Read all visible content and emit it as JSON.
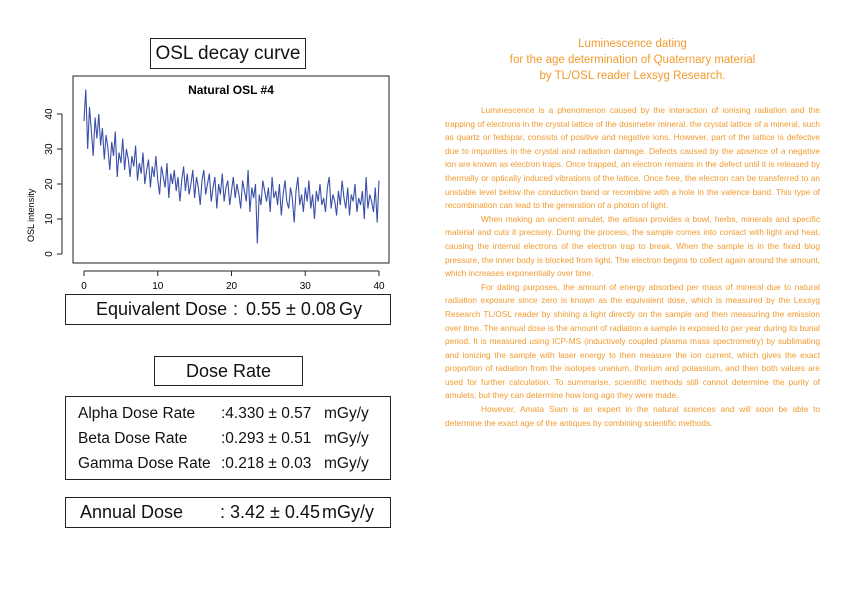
{
  "osl_section": {
    "title": "OSL decay curve"
  },
  "chart_data": {
    "type": "line",
    "title": "Natural OSL #4",
    "xlabel": "",
    "ylabel": "OSL intensity",
    "xlim": [
      0,
      40
    ],
    "ylim": [
      0,
      48
    ],
    "xticks": [
      "0",
      "10",
      "20",
      "30",
      "40"
    ],
    "yticks": [
      "0",
      "10",
      "20",
      "30",
      "40"
    ],
    "color": "#3a4fa8",
    "x": [
      0,
      0.25,
      0.5,
      0.75,
      1,
      1.25,
      1.5,
      1.75,
      2,
      2.25,
      2.5,
      2.75,
      3,
      3.25,
      3.5,
      3.75,
      4,
      4.25,
      4.5,
      4.75,
      5,
      5.25,
      5.5,
      5.75,
      6,
      6.25,
      6.5,
      6.75,
      7,
      7.25,
      7.5,
      7.75,
      8,
      8.25,
      8.5,
      8.75,
      9,
      9.25,
      9.5,
      9.75,
      10,
      10.25,
      10.5,
      10.75,
      11,
      11.25,
      11.5,
      11.75,
      12,
      12.25,
      12.5,
      12.75,
      13,
      13.25,
      13.5,
      13.75,
      14,
      14.25,
      14.5,
      14.75,
      15,
      15.25,
      15.5,
      15.75,
      16,
      16.25,
      16.5,
      16.75,
      17,
      17.25,
      17.5,
      17.75,
      18,
      18.25,
      18.5,
      18.75,
      19,
      19.25,
      19.5,
      19.75,
      20,
      20.25,
      20.5,
      20.75,
      21,
      21.25,
      21.5,
      21.75,
      22,
      22.25,
      22.5,
      22.75,
      23,
      23.25,
      23.5,
      23.75,
      24,
      24.25,
      24.5,
      24.75,
      25,
      25.25,
      25.5,
      25.75,
      26,
      26.25,
      26.5,
      26.75,
      27,
      27.25,
      27.5,
      27.75,
      28,
      28.25,
      28.5,
      28.75,
      29,
      29.25,
      29.5,
      29.75,
      30,
      30.25,
      30.5,
      30.75,
      31,
      31.25,
      31.5,
      31.75,
      32,
      32.25,
      32.5,
      32.75,
      33,
      33.25,
      33.5,
      33.75,
      34,
      34.25,
      34.5,
      34.75,
      35,
      35.25,
      35.5,
      35.75,
      36,
      36.25,
      36.5,
      36.75,
      37,
      37.25,
      37.5,
      37.75,
      38,
      38.25,
      38.5,
      38.75,
      39,
      39.25,
      39.5,
      39.75,
      40
    ],
    "y": [
      38,
      47,
      30,
      42,
      35,
      28,
      39,
      33,
      40,
      31,
      36,
      27,
      34,
      30,
      24,
      32,
      28,
      35,
      22,
      29,
      26,
      33,
      24,
      30,
      27,
      22,
      28,
      25,
      31,
      21,
      26,
      23,
      29,
      20,
      24,
      27,
      19,
      25,
      22,
      28,
      21,
      17,
      25,
      22,
      19,
      26,
      16,
      23,
      20,
      24,
      18,
      22,
      15,
      21,
      25,
      18,
      23,
      17,
      20,
      24,
      16,
      22,
      19,
      14,
      21,
      24,
      17,
      20,
      23,
      15,
      19,
      22,
      13,
      20,
      17,
      23,
      15,
      19,
      21,
      14,
      18,
      22,
      16,
      20,
      17,
      13,
      21,
      18,
      15,
      24,
      12,
      19,
      16,
      20,
      3,
      17,
      14,
      21,
      18,
      15,
      19,
      12,
      22,
      16,
      18,
      14,
      20,
      11,
      17,
      21,
      15,
      13,
      19,
      16,
      9,
      18,
      22,
      14,
      17,
      12,
      19,
      15,
      21,
      13,
      17,
      10,
      18,
      15,
      20,
      14,
      16,
      12,
      19,
      22,
      13,
      17,
      15,
      11,
      18,
      14,
      21,
      16,
      13,
      19,
      11,
      17,
      15,
      20,
      12,
      16,
      14,
      18,
      10,
      22,
      13,
      17,
      15,
      12,
      19,
      9,
      21
    ]
  },
  "equivalent_dose": {
    "label": "Equivalent Dose",
    "colon": ":",
    "value": "0.55 ± 0.08",
    "unit": "Gy"
  },
  "dose_rate_section": {
    "title": "Dose Rate",
    "rows": [
      {
        "label": "Alpha Dose Rate",
        "value": ":4.330 ± 0.57",
        "unit": "mGy/y"
      },
      {
        "label": "Beta Dose Rate",
        "value": ":0.293 ± 0.51",
        "unit": "mGy/y"
      },
      {
        "label": "Gamma Dose Rate",
        "value": ":0.218 ± 0.03",
        "unit": "mGy/y"
      }
    ]
  },
  "annual_dose": {
    "label": "Annual Dose",
    "value": ": 3.42 ± 0.45",
    "unit": "mGy/y"
  },
  "article": {
    "title_lines": [
      "Luminescence dating",
      "for the age determination of Quaternary material",
      "by TL/OSL reader Lexsyg Research."
    ],
    "paragraphs": [
      "Luminescence is a phenomenon caused by the interaction of ionising radiation and the trapping of electrons in the crystal lattice of the dosimeter mineral. the crystal lattice of a mineral, such as quartz or feldspar, consists of positive and negative ions. However, part of the lattice is defective due to impurities in the crystal and radiation damage. Defects caused by the absence of a negative ion are known as electron traps. Once trapped, an electron remains in the defect until it is released by thermally or optically induced vibrations of the lattice. Once free, the electron can be transferred to an unstable level below the conduction band or recombine with a hole in the valence band. This type of recombination can lead to the generation of a photon of light.",
      "When making an ancient amulet, the artisan provides a bowl, herbs, minerals and specific material and cuts it precisely. During the process, the sample comes into contact with light and heat, causing the internal electrons of the electron trap to break. When the sample is in the fixed blog pressure, the inner body is blocked from light. The electron begins to collect again around the amount, which increases exponentially over time.",
      "For dating purposes, the amount of energy absorbed per mass of mineral due to natural radiation exposure since zero is known as the equivalent dose, which is measured by the Lexsyg Research TL/OSL reader by shining a light directly on the sample and then measuring the emission over time. The annual dose is the amount of radiation a sample is exposed to per year during its burial period. It is measured using ICP-MS (inductively coupled plasma mass spectrometry) by sublimating and ionizing the sample with laser energy to then measure the ion current, which gives the exact proportion of radiation from the isotopes uranium, thorium and potassium, and then both values are used for further calculation. To summarise, scientific methods still cannot determine the purity of amulets, but they can determine how long ago they were made.",
      "However, Amata Siam is an expert in the natural sciences and will soon be able to determine the exact age of the antiques by combining scientific methods."
    ]
  }
}
